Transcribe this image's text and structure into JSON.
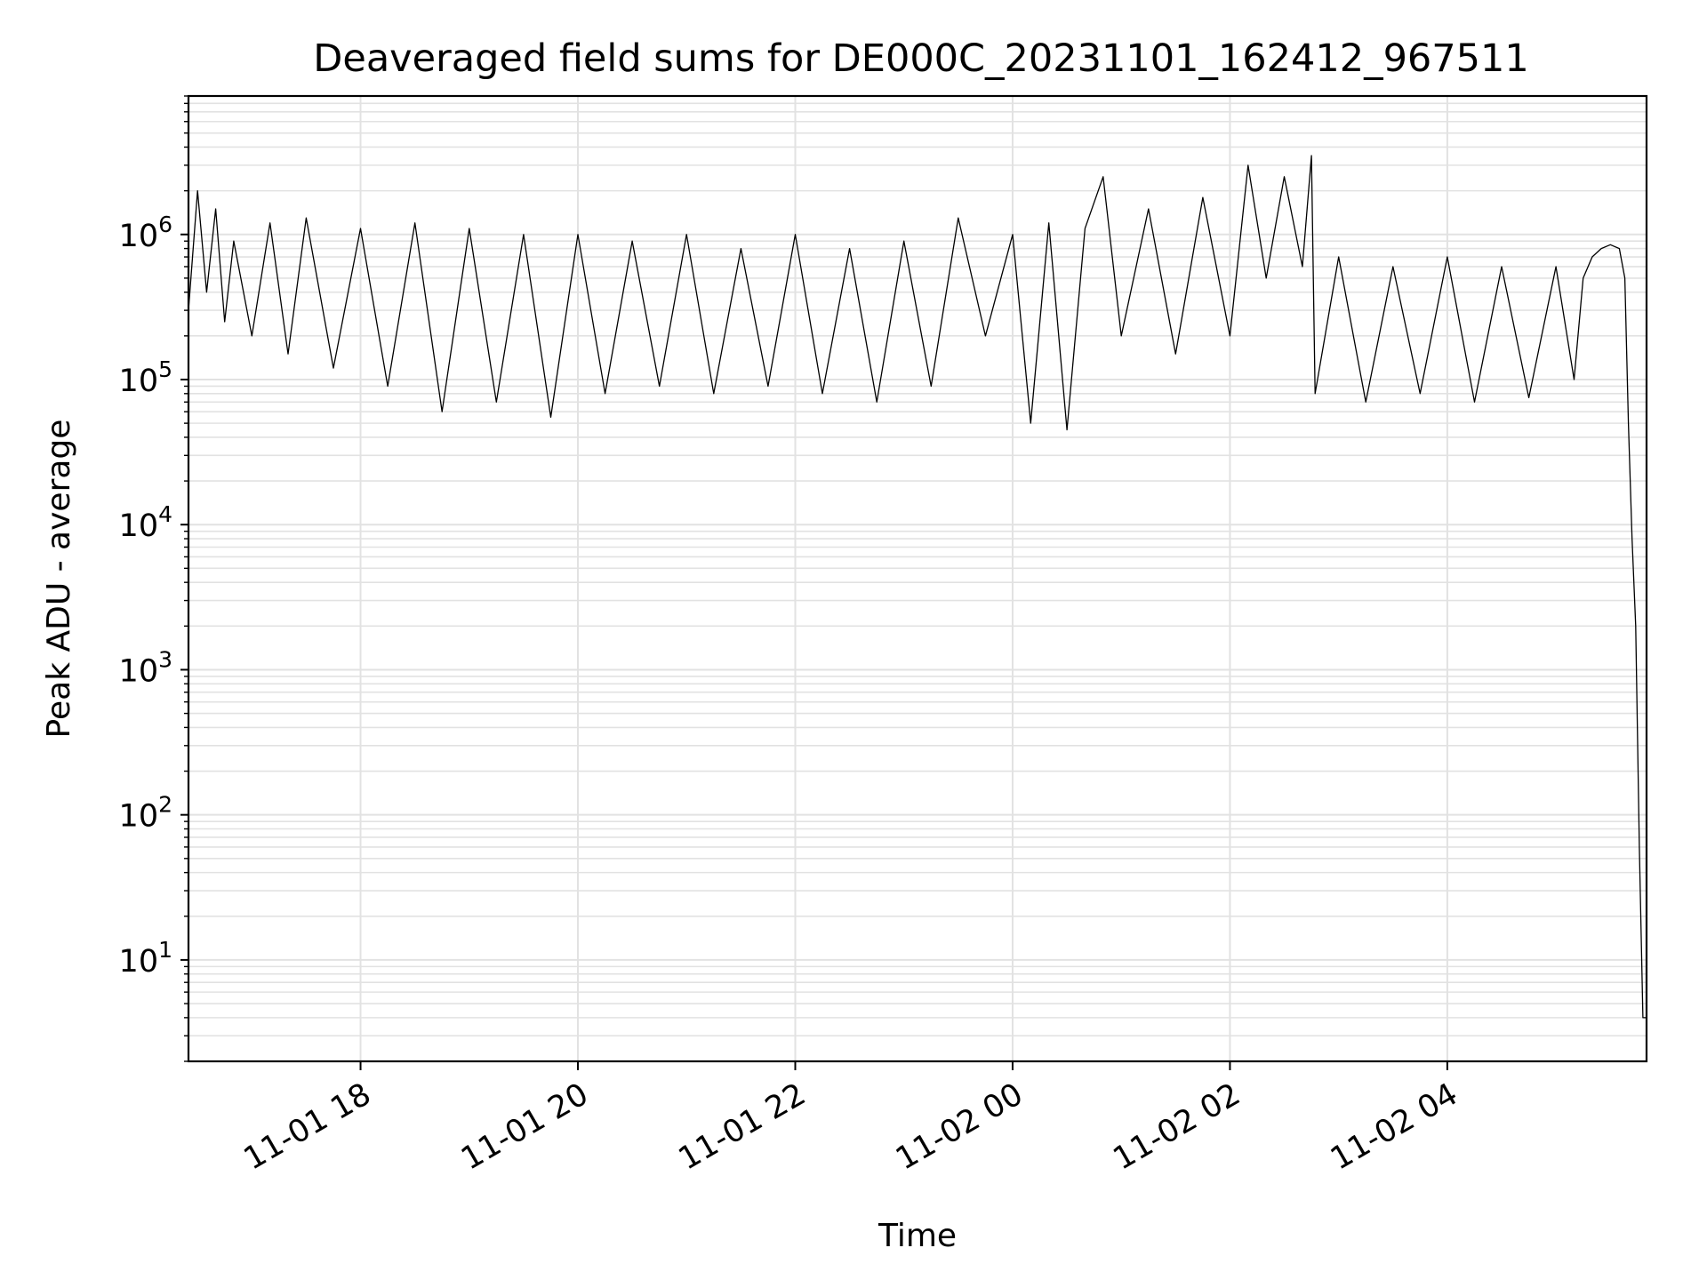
{
  "colors": {
    "series": "#000000",
    "grid": "#e2e2e2",
    "background": "#ffffff"
  },
  "chart_data": {
    "type": "line",
    "title": "Deaveraged field sums for DE000C_20231101_162412_967511",
    "xlabel": "Time",
    "ylabel": "Peak ADU - average",
    "y_scale": "log",
    "grid": true,
    "xlim": [
      "2023-11-01 16:25",
      "2023-11-02 05:50"
    ],
    "ylim": [
      2,
      9000000
    ],
    "x_ticks": [
      {
        "value": "2023-11-01 18:00",
        "label": "11-01 18"
      },
      {
        "value": "2023-11-01 20:00",
        "label": "11-01 20"
      },
      {
        "value": "2023-11-01 22:00",
        "label": "11-01 22"
      },
      {
        "value": "2023-11-02 00:00",
        "label": "11-02 00"
      },
      {
        "value": "2023-11-02 02:00",
        "label": "11-02 02"
      },
      {
        "value": "2023-11-02 04:00",
        "label": "11-02 04"
      }
    ],
    "y_ticks": [
      {
        "value": 10,
        "base": "10",
        "exp": "1"
      },
      {
        "value": 100,
        "base": "10",
        "exp": "2"
      },
      {
        "value": 1000,
        "base": "10",
        "exp": "3"
      },
      {
        "value": 10000,
        "base": "10",
        "exp": "4"
      },
      {
        "value": 100000,
        "base": "10",
        "exp": "5"
      },
      {
        "value": 1000000,
        "base": "10",
        "exp": "6"
      }
    ],
    "series": [
      {
        "points": [
          [
            "2023-11-01 16:25",
            300000
          ],
          [
            "2023-11-01 16:30",
            2000000
          ],
          [
            "2023-11-01 16:35",
            400000
          ],
          [
            "2023-11-01 16:40",
            1500000
          ],
          [
            "2023-11-01 16:45",
            250000
          ],
          [
            "2023-11-01 16:50",
            900000
          ],
          [
            "2023-11-01 17:00",
            200000
          ],
          [
            "2023-11-01 17:10",
            1200000
          ],
          [
            "2023-11-01 17:20",
            150000
          ],
          [
            "2023-11-01 17:30",
            1300000
          ],
          [
            "2023-11-01 17:45",
            120000
          ],
          [
            "2023-11-01 18:00",
            1100000
          ],
          [
            "2023-11-01 18:15",
            90000
          ],
          [
            "2023-11-01 18:30",
            1200000
          ],
          [
            "2023-11-01 18:45",
            60000
          ],
          [
            "2023-11-01 19:00",
            1100000
          ],
          [
            "2023-11-01 19:15",
            70000
          ],
          [
            "2023-11-01 19:30",
            1000000
          ],
          [
            "2023-11-01 19:45",
            55000
          ],
          [
            "2023-11-01 20:00",
            1000000
          ],
          [
            "2023-11-01 20:15",
            80000
          ],
          [
            "2023-11-01 20:30",
            900000
          ],
          [
            "2023-11-01 20:45",
            90000
          ],
          [
            "2023-11-01 21:00",
            1000000
          ],
          [
            "2023-11-01 21:15",
            80000
          ],
          [
            "2023-11-01 21:30",
            800000
          ],
          [
            "2023-11-01 21:45",
            90000
          ],
          [
            "2023-11-01 22:00",
            1000000
          ],
          [
            "2023-11-01 22:15",
            80000
          ],
          [
            "2023-11-01 22:30",
            800000
          ],
          [
            "2023-11-01 22:45",
            70000
          ],
          [
            "2023-11-01 23:00",
            900000
          ],
          [
            "2023-11-01 23:15",
            90000
          ],
          [
            "2023-11-01 23:30",
            1300000
          ],
          [
            "2023-11-01 23:45",
            200000
          ],
          [
            "2023-11-02 00:00",
            1000000
          ],
          [
            "2023-11-02 00:10",
            50000
          ],
          [
            "2023-11-02 00:20",
            1200000
          ],
          [
            "2023-11-02 00:30",
            45000
          ],
          [
            "2023-11-02 00:40",
            1100000
          ],
          [
            "2023-11-02 00:50",
            2500000
          ],
          [
            "2023-11-02 01:00",
            200000
          ],
          [
            "2023-11-02 01:15",
            1500000
          ],
          [
            "2023-11-02 01:30",
            150000
          ],
          [
            "2023-11-02 01:45",
            1800000
          ],
          [
            "2023-11-02 02:00",
            200000
          ],
          [
            "2023-11-02 02:10",
            3000000
          ],
          [
            "2023-11-02 02:20",
            500000
          ],
          [
            "2023-11-02 02:30",
            2500000
          ],
          [
            "2023-11-02 02:40",
            600000
          ],
          [
            "2023-11-02 02:45",
            3500000
          ],
          [
            "2023-11-02 02:47",
            80000
          ],
          [
            "2023-11-02 03:00",
            700000
          ],
          [
            "2023-11-02 03:15",
            70000
          ],
          [
            "2023-11-02 03:30",
            600000
          ],
          [
            "2023-11-02 03:45",
            80000
          ],
          [
            "2023-11-02 04:00",
            700000
          ],
          [
            "2023-11-02 04:15",
            70000
          ],
          [
            "2023-11-02 04:30",
            600000
          ],
          [
            "2023-11-02 04:45",
            75000
          ],
          [
            "2023-11-02 05:00",
            600000
          ],
          [
            "2023-11-02 05:10",
            100000
          ],
          [
            "2023-11-02 05:15",
            500000
          ],
          [
            "2023-11-02 05:20",
            700000
          ],
          [
            "2023-11-02 05:25",
            800000
          ],
          [
            "2023-11-02 05:30",
            850000
          ],
          [
            "2023-11-02 05:35",
            800000
          ],
          [
            "2023-11-02 05:38",
            500000
          ],
          [
            "2023-11-02 05:40",
            50000
          ],
          [
            "2023-11-02 05:42",
            8000
          ],
          [
            "2023-11-02 05:44",
            2000
          ],
          [
            "2023-11-02 05:46",
            60
          ],
          [
            "2023-11-02 05:48",
            4
          ],
          [
            "2023-11-02 05:50",
            4
          ]
        ]
      }
    ]
  }
}
